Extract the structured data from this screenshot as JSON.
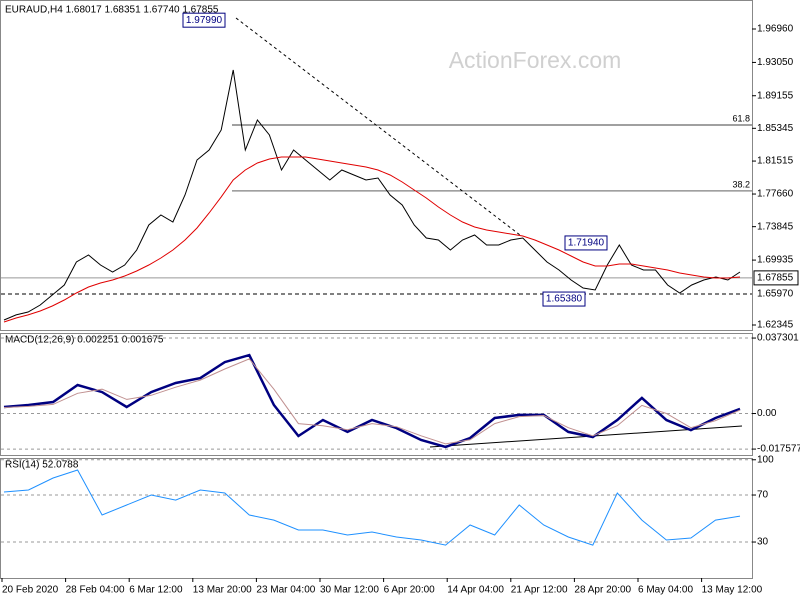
{
  "chart_data": [
    {
      "type": "line",
      "title": "EURAUD,H4  1.68017 1.68351 1.67740 1.67855",
      "watermark": "ActionForex.com",
      "ylim": [
        1.6176,
        2.0035
      ],
      "grid": false,
      "yticks": [
        {
          "value": 1.9696,
          "label": "1.96960"
        },
        {
          "value": 1.9305,
          "label": "1.93050"
        },
        {
          "value": 1.89155,
          "label": "1.89155"
        },
        {
          "value": 1.85345,
          "label": "1.85345"
        },
        {
          "value": 1.81515,
          "label": "1.81515"
        },
        {
          "value": 1.7766,
          "label": "1.77660"
        },
        {
          "value": 1.73845,
          "label": "1.73845"
        },
        {
          "value": 1.69935,
          "label": "1.69935"
        },
        {
          "value": 1.62345,
          "label": "1.62345"
        }
      ],
      "series": [
        {
          "color": "#000000",
          "values": [
            1.6293,
            1.6352,
            1.6387,
            1.6468,
            1.6585,
            1.6702,
            1.6971,
            1.7053,
            1.6936,
            1.6854,
            1.6936,
            1.7112,
            1.7404,
            1.7521,
            1.7439,
            1.7755,
            1.8164,
            1.8281,
            1.8515,
            1.9217,
            1.8281,
            1.8632,
            1.8456,
            1.8047,
            1.8281,
            1.8164,
            1.8047,
            1.793,
            1.8047,
            1.7989,
            1.793,
            1.7954,
            1.7755,
            1.7638,
            1.7404,
            1.7252,
            1.7229,
            1.7112,
            1.7229,
            1.7287,
            1.717,
            1.717,
            1.7229,
            1.7252,
            1.7112,
            1.6971,
            1.6878,
            1.6761,
            1.6667,
            1.6644,
            1.6936,
            1.717,
            1.6936,
            1.6878,
            1.6878,
            1.6702,
            1.6609,
            1.6702,
            1.6761,
            1.6796,
            1.6761,
            1.6854
          ]
        },
        {
          "color": "#e00000",
          "values": [
            1.627,
            1.6316,
            1.6352,
            1.6398,
            1.6457,
            1.6527,
            1.6609,
            1.6679,
            1.6726,
            1.6761,
            1.6808,
            1.6866,
            1.6936,
            1.7018,
            1.7112,
            1.7229,
            1.7369,
            1.7544,
            1.7732,
            1.793,
            1.8047,
            1.8129,
            1.8176,
            1.8199,
            1.8199,
            1.8199,
            1.8176,
            1.8152,
            1.8129,
            1.8106,
            1.8082,
            1.8047,
            1.7989,
            1.7907,
            1.7813,
            1.772,
            1.7614,
            1.7521,
            1.7439,
            1.7381,
            1.7345,
            1.7322,
            1.7299,
            1.7275,
            1.7229,
            1.717,
            1.7112,
            1.7041,
            1.6971,
            1.6924,
            1.6924,
            1.6948,
            1.6948,
            1.6924,
            1.6901,
            1.6878,
            1.6843,
            1.6819,
            1.6796,
            1.6784,
            1.6784,
            1.6796
          ]
        }
      ],
      "annotations": [
        {
          "value": 1.9799,
          "label": "1.97990"
        },
        {
          "value": 1.7194,
          "label": "1.71940"
        },
        {
          "value": 1.6538,
          "label": "1.65380"
        }
      ],
      "levels": [
        {
          "value": 1.8573,
          "label": "61.8"
        },
        {
          "value": 1.7802,
          "label": "38.2"
        }
      ],
      "price_lines": [
        {
          "value": 1.67855,
          "label": "1.67855",
          "dashed": false
        },
        {
          "value": 1.6597,
          "label": "1.65970",
          "dashed": true
        }
      ]
    },
    {
      "type": "line",
      "title": "MACD(12,26,9) 0.002251 0.001675",
      "ylim": [
        -0.0205,
        0.0398
      ],
      "grid": true,
      "yticks": [
        0.037301,
        {
          "value": 0,
          "label": "0.00"
        },
        -0.017577
      ],
      "series": [
        {
          "color": "#000080",
          "values": [
            0.0032,
            0.0042,
            0.0057,
            0.0141,
            0.0106,
            0.0032,
            0.0106,
            0.0151,
            0.0175,
            0.0254,
            0.0289,
            0.0042,
            -0.0111,
            -0.0032,
            -0.0091,
            -0.0032,
            -0.0072,
            -0.0131,
            -0.0165,
            -0.0121,
            -0.0022,
            -0.0007,
            -0.0007,
            -0.0091,
            -0.0116,
            -0.0032,
            0.0077,
            -0.0032,
            -0.0082,
            -0.0022,
            0.0023
          ]
        },
        {
          "color": "#c09090",
          "values": [
            0.003,
            0.0035,
            0.0045,
            0.01,
            0.012,
            0.007,
            0.009,
            0.013,
            0.0165,
            0.022,
            0.027,
            0.012,
            -0.005,
            -0.006,
            -0.008,
            -0.005,
            -0.0065,
            -0.011,
            -0.015,
            -0.013,
            -0.005,
            -0.0015,
            -0.001,
            -0.007,
            -0.011,
            -0.006,
            0.004,
            0.0,
            -0.007,
            -0.0035,
            0.0017
          ]
        }
      ]
    },
    {
      "type": "line",
      "title": "RSI(14) 52.0788",
      "ylim": [
        -0.6,
        101.5
      ],
      "grid": true,
      "yticks": [
        100,
        70,
        30
      ],
      "series": [
        {
          "color": "#1e90ff",
          "values": [
            72.6,
            74.3,
            84.5,
            91.3,
            53.0,
            61.5,
            70.0,
            65.7,
            74.3,
            71.7,
            53.0,
            48.7,
            40.2,
            40.2,
            36.0,
            38.5,
            34.3,
            31.7,
            27.4,
            44.5,
            36.0,
            61.5,
            44.5,
            34.3,
            27.4,
            71.7,
            48.7,
            31.7,
            33.4,
            48.7,
            52.1
          ]
        }
      ],
      "xtick_labels": [
        "20 Feb 2020",
        "28 Feb 04:00",
        "6 Mar 12:00",
        "13 Mar 20:00",
        "23 Mar 04:00",
        "30 Mar 12:00",
        "6 Apr 20:00",
        "14 Apr 04:00",
        "21 Apr 12:00",
        "28 Apr 20:00",
        "6 May 04:00",
        "13 May 12:00"
      ]
    }
  ]
}
